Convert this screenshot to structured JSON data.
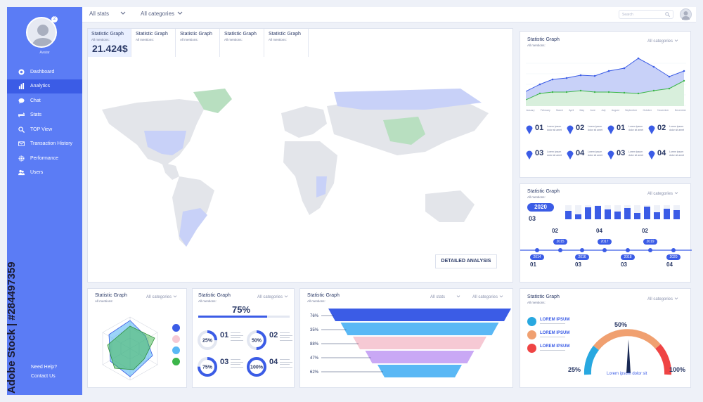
{
  "sidebar": {
    "avatar_label": "Avatar",
    "avatar_badge": "2",
    "items": [
      {
        "label": "Dashboard",
        "icon": "dashboard-icon"
      },
      {
        "label": "Analytics",
        "icon": "bar-chart-icon"
      },
      {
        "label": "Chat",
        "icon": "chat-icon"
      },
      {
        "label": "Stats",
        "icon": "stats-icon"
      },
      {
        "label": "TOP View",
        "icon": "search-icon"
      },
      {
        "label": "Transaction History",
        "icon": "mail-icon"
      },
      {
        "label": "Performance",
        "icon": "gear-icon"
      },
      {
        "label": "Users",
        "icon": "users-icon"
      }
    ],
    "help": "Need Help?",
    "contact": "Contact Us",
    "watermark": "Adobe Stock | #284497359"
  },
  "topbar": {
    "stats_select": "All stats",
    "categories_select": "All categories",
    "search_placeholder": "Search"
  },
  "map_panel": {
    "tabs": [
      {
        "title": "Statistic Graph",
        "sub": "All mentions:",
        "value": "21.424$"
      },
      {
        "title": "Statistic Graph",
        "sub": "All mentions:"
      },
      {
        "title": "Statistic Graph",
        "sub": "All mentions:"
      },
      {
        "title": "Statistic Graph",
        "sub": "All mentions:"
      },
      {
        "title": "Statistic Graph",
        "sub": "All mentions:"
      }
    ],
    "button": "DETAILED ANALYSIS"
  },
  "line_panel": {
    "title": "Statistic Graph",
    "sub": "All mentions:",
    "categories": "All categories",
    "months": [
      "January",
      "February",
      "March",
      "April",
      "May",
      "June",
      "July",
      "August",
      "September",
      "October",
      "November",
      "December"
    ],
    "items": [
      "01",
      "02",
      "01",
      "02",
      "03",
      "04",
      "03",
      "04"
    ],
    "item_text": "Lorem ipsum dolor sit amet"
  },
  "timeline_panel": {
    "title": "Statistic Graph",
    "sub": "All mentions:",
    "categories": "All categories",
    "year_badge": "2020",
    "years_top": [
      "2015",
      "2017",
      "2019"
    ],
    "years_bottom": [
      "2014",
      "2016",
      "2018",
      "2020"
    ],
    "nums_top": [
      "02",
      "04",
      "02"
    ],
    "nums_bottom": [
      "01",
      "03",
      "03",
      "04"
    ],
    "first_num": "03",
    "bars": [
      0.6,
      0.35,
      0.85,
      0.95,
      0.7,
      0.55,
      0.8,
      0.45,
      0.9,
      0.5,
      0.75,
      0.65
    ]
  },
  "radar_panel": {
    "title": "Statistic Graph",
    "sub": "All mentions:",
    "categories": "All categories",
    "legend_colors": [
      "#3b5ce6",
      "#f6c9d4",
      "#5ab8f5",
      "#3cb54a"
    ]
  },
  "progress_panel": {
    "title": "Statistic Graph",
    "sub": "All mentions:",
    "categories": "All categories",
    "main_value": "75%",
    "main_fraction": 0.75,
    "rings": [
      {
        "label": "25%",
        "fraction": 0.25,
        "num": "01"
      },
      {
        "label": "50%",
        "fraction": 0.5,
        "num": "02"
      },
      {
        "label": "75%",
        "fraction": 0.75,
        "num": "03"
      },
      {
        "label": "100%",
        "fraction": 1.0,
        "num": "04"
      }
    ]
  },
  "funnel_panel": {
    "title": "Statistic Graph",
    "sub": "All mentions:",
    "stats": "All stats",
    "categories": "All categories",
    "levels": [
      {
        "label": "76%",
        "color": "#3b5ce6"
      },
      {
        "label": "35%",
        "color": "#5ab8f5"
      },
      {
        "label": "88%",
        "color": "#f6c9d4"
      },
      {
        "label": "47%",
        "color": "#c9a8f5"
      },
      {
        "label": "62%",
        "color": "#5ab8f5"
      }
    ]
  },
  "gauge_panel": {
    "title": "Statistic Graph",
    "sub": "All mentions:",
    "categories": "All categories",
    "legend": [
      {
        "label": "LOREM IPSUM",
        "color": "#28a8e0"
      },
      {
        "label": "LOREM IPSUM",
        "color": "#f0a070"
      },
      {
        "label": "LOREM IPSUM",
        "color": "#ef4444"
      }
    ],
    "low": "25%",
    "mid": "50%",
    "high": "100%",
    "caption": "Lorem ipsum  dolor sit"
  }
}
